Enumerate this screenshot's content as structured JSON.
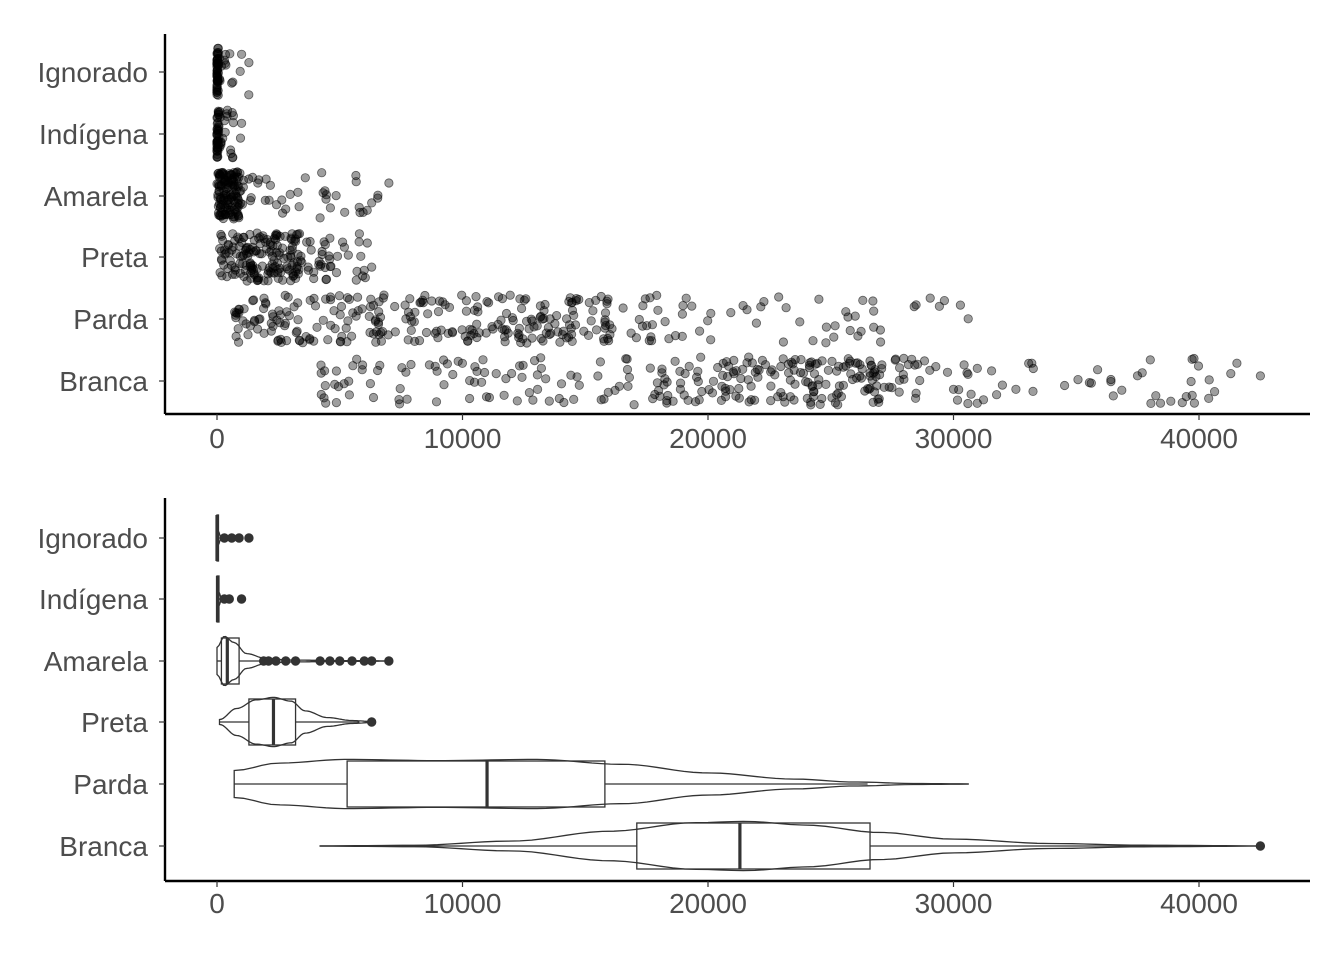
{
  "colors": {
    "text": "#4d4d4d",
    "axis": "#000000",
    "points": "#000000",
    "outline": "#333333"
  },
  "chart_data": [
    {
      "type": "scatter",
      "subtype": "jitter",
      "title": "",
      "xlabel": "",
      "ylabel": "",
      "xlim": [
        -2000,
        44000
      ],
      "xticks": [
        0,
        10000,
        20000,
        30000,
        40000
      ],
      "tick_labels": [
        "0",
        "10000",
        "20000",
        "30000",
        "40000"
      ],
      "categories": [
        "Ignorado",
        "Indígena",
        "Amarela",
        "Preta",
        "Parda",
        "Branca"
      ],
      "series": [
        {
          "name": "Ignorado",
          "min": 0,
          "max": 1300,
          "q1": 0,
          "median": 0,
          "q3": 60,
          "n": 60,
          "outliers": [
            300,
            600,
            1300
          ]
        },
        {
          "name": "Indígena",
          "min": 0,
          "max": 1000,
          "q1": 0,
          "median": 20,
          "q3": 80,
          "n": 60,
          "outliers": [
            400,
            1000
          ]
        },
        {
          "name": "Amarela",
          "min": 0,
          "max": 7000,
          "q1": 180,
          "median": 420,
          "q3": 900,
          "n": 160,
          "outliers": [
            2000,
            2800,
            4200,
            5200,
            6300,
            7000
          ]
        },
        {
          "name": "Preta",
          "min": 100,
          "max": 6300,
          "q1": 1300,
          "median": 2300,
          "q3": 3200,
          "n": 200,
          "outliers": [
            6300
          ]
        },
        {
          "name": "Parda",
          "min": 700,
          "max": 30600,
          "q1": 5300,
          "median": 11000,
          "q3": 15800,
          "n": 320,
          "outliers": [
            28400,
            30600
          ]
        },
        {
          "name": "Branca",
          "min": 4200,
          "max": 42500,
          "q1": 17100,
          "median": 21300,
          "q3": 26600,
          "n": 320,
          "outliers": [
            42500
          ]
        }
      ]
    },
    {
      "type": "violin+box",
      "title": "",
      "xlabel": "",
      "ylabel": "",
      "xlim": [
        -2000,
        44000
      ],
      "xticks": [
        0,
        10000,
        20000,
        30000,
        40000
      ],
      "tick_labels": [
        "0",
        "10000",
        "20000",
        "30000",
        "40000"
      ],
      "categories": [
        "Ignorado",
        "Indígena",
        "Amarela",
        "Preta",
        "Parda",
        "Branca"
      ],
      "series": [
        {
          "name": "Ignorado",
          "q1": 0,
          "median": 0,
          "q3": 60,
          "whisker_low": 0,
          "whisker_high": 120,
          "violin_min": 0,
          "violin_max": 150,
          "outliers": [
            300,
            600,
            900,
            1300
          ],
          "density": [
            [
              0,
              0.3
            ],
            [
              60,
              0.25
            ],
            [
              150,
              0.05
            ]
          ]
        },
        {
          "name": "Indígena",
          "q1": 0,
          "median": 20,
          "q3": 80,
          "whisker_low": 0,
          "whisker_high": 150,
          "violin_min": 0,
          "violin_max": 180,
          "outliers": [
            300,
            500,
            1000
          ],
          "density": [
            [
              0,
              0.3
            ],
            [
              80,
              0.25
            ],
            [
              180,
              0.05
            ]
          ]
        },
        {
          "name": "Amarela",
          "q1": 180,
          "median": 420,
          "q3": 900,
          "whisker_low": 0,
          "whisker_high": 1800,
          "violin_min": 0,
          "violin_max": 7000,
          "outliers": [
            1900,
            2100,
            2400,
            2800,
            3200,
            4200,
            4600,
            5000,
            5500,
            6000,
            6300,
            7000
          ],
          "density": [
            [
              0,
              0.55
            ],
            [
              300,
              1.0
            ],
            [
              700,
              0.75
            ],
            [
              1200,
              0.3
            ],
            [
              2000,
              0.1
            ],
            [
              3000,
              0.04
            ],
            [
              5000,
              0.015
            ],
            [
              7000,
              0.005
            ]
          ]
        },
        {
          "name": "Preta",
          "q1": 1300,
          "median": 2300,
          "q3": 3200,
          "whisker_low": 100,
          "whisker_high": 5800,
          "violin_min": 100,
          "violin_max": 6300,
          "outliers": [
            6300
          ],
          "density": [
            [
              100,
              0.1
            ],
            [
              800,
              0.55
            ],
            [
              1600,
              0.9
            ],
            [
              2300,
              1.0
            ],
            [
              3000,
              0.85
            ],
            [
              3600,
              0.45
            ],
            [
              4500,
              0.18
            ],
            [
              5500,
              0.06
            ],
            [
              6300,
              0.02
            ]
          ]
        },
        {
          "name": "Parda",
          "q1": 5300,
          "median": 11000,
          "q3": 15800,
          "whisker_low": 700,
          "whisker_high": 26500,
          "violin_min": 700,
          "violin_max": 30600,
          "outliers": [],
          "density": [
            [
              700,
              0.55
            ],
            [
              2500,
              0.85
            ],
            [
              5300,
              1.0
            ],
            [
              9000,
              0.95
            ],
            [
              13000,
              1.0
            ],
            [
              16500,
              0.8
            ],
            [
              20000,
              0.45
            ],
            [
              23500,
              0.2
            ],
            [
              26000,
              0.08
            ],
            [
              28500,
              0.02
            ],
            [
              30600,
              0.005
            ]
          ]
        },
        {
          "name": "Branca",
          "q1": 17100,
          "median": 21300,
          "q3": 26600,
          "whisker_low": 4200,
          "whisker_high": 40500,
          "violin_min": 4200,
          "violin_max": 42500,
          "outliers": [
            42500
          ],
          "density": [
            [
              4200,
              0.003
            ],
            [
              8000,
              0.03
            ],
            [
              12000,
              0.2
            ],
            [
              16000,
              0.6
            ],
            [
              19500,
              0.95
            ],
            [
              21500,
              1.0
            ],
            [
              24000,
              0.85
            ],
            [
              27000,
              0.55
            ],
            [
              30000,
              0.28
            ],
            [
              34000,
              0.1
            ],
            [
              38000,
              0.03
            ],
            [
              42500,
              0.005
            ]
          ]
        }
      ]
    }
  ]
}
